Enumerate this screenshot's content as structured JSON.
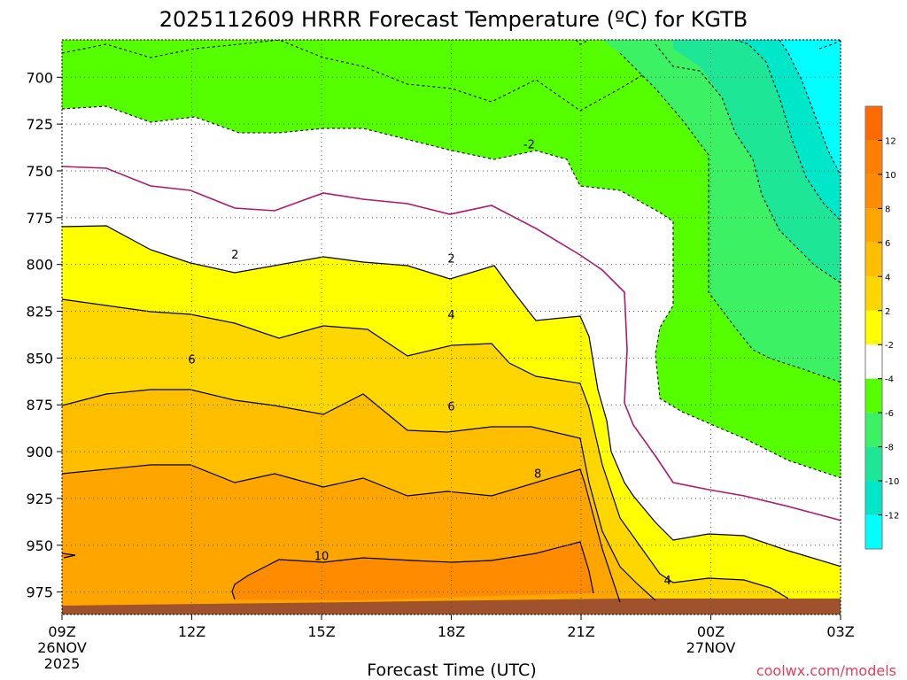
{
  "chart_data": {
    "type": "heatmap",
    "title": "2025112609 HRRR Forecast Temperature (ºC) for KGTB",
    "xlabel": "Forecast Time (UTC)",
    "ylabel": "",
    "credit": "coolwx.com/models",
    "x_ticks": [
      {
        "hour": 0,
        "label": "09Z",
        "sub1": "26NOV",
        "sub2": "2025"
      },
      {
        "hour": 3,
        "label": "12Z",
        "sub1": "",
        "sub2": ""
      },
      {
        "hour": 6,
        "label": "15Z",
        "sub1": "",
        "sub2": ""
      },
      {
        "hour": 9,
        "label": "18Z",
        "sub1": "",
        "sub2": ""
      },
      {
        "hour": 12,
        "label": "21Z",
        "sub1": "",
        "sub2": ""
      },
      {
        "hour": 15,
        "label": "00Z",
        "sub1": "27NOV",
        "sub2": ""
      },
      {
        "hour": 18,
        "label": "03Z",
        "sub1": "",
        "sub2": ""
      }
    ],
    "y_ticks": [
      700,
      725,
      750,
      775,
      800,
      825,
      850,
      875,
      900,
      925,
      950,
      975
    ],
    "y_range_hpa": [
      680,
      987
    ],
    "x_range_hours": [
      0,
      18
    ],
    "grid": true,
    "legend": "right colorbar",
    "colorbar": {
      "ticks": [
        "12",
        "10",
        "8",
        "6",
        "4",
        "2",
        "-2",
        "-4",
        "-6",
        "-8",
        "-10",
        "-12"
      ],
      "colors": [
        "#ff7f00",
        "#ff8c00",
        "#ffa500",
        "#ffbe00",
        "#ffd700",
        "#ffff00",
        "#ffffff",
        "#55ff00",
        "#3cf264",
        "#1de696",
        "#00e6c8",
        "#00ffff"
      ]
    },
    "bands": [
      {
        "range": "<= -12",
        "color": "#00ffff"
      },
      {
        "range": "-12 to -10",
        "color": "#00e6c8"
      },
      {
        "range": "-10 to -8",
        "color": "#1de696"
      },
      {
        "range": "-8 to -6",
        "color": "#3cf264"
      },
      {
        "range": "-6 to -4",
        "color": "#3cf264"
      },
      {
        "range": "-4 to -2",
        "color": "#55ff00"
      },
      {
        "range": "-2 to 2",
        "color": "#ffffff"
      },
      {
        "range": "2 to 4",
        "color": "#ffff00"
      },
      {
        "range": "4 to 6",
        "color": "#ffd700"
      },
      {
        "range": "6 to 8",
        "color": "#ffbe00"
      },
      {
        "range": "8 to 10",
        "color": "#ffa500"
      },
      {
        "range": "10 to 12",
        "color": "#ff8c00"
      }
    ],
    "ground_color": "#a0522d",
    "freezing_line_color": "#b0186a",
    "contour_labels": [
      {
        "text": "-2",
        "hour": 10.8,
        "hpa": 736
      },
      {
        "text": "2",
        "hour": 4.0,
        "hpa": 795
      },
      {
        "text": "2",
        "hour": 9.0,
        "hpa": 797
      },
      {
        "text": "4",
        "hour": 9.0,
        "hpa": 827
      },
      {
        "text": "6",
        "hour": 3.0,
        "hpa": 851
      },
      {
        "text": "6",
        "hour": 9.0,
        "hpa": 876
      },
      {
        "text": "8",
        "hour": 11.0,
        "hpa": 912
      },
      {
        "text": "10",
        "hour": 6.0,
        "hpa": 956
      },
      {
        "text": "4",
        "hour": 14.0,
        "hpa": 969
      }
    ]
  }
}
